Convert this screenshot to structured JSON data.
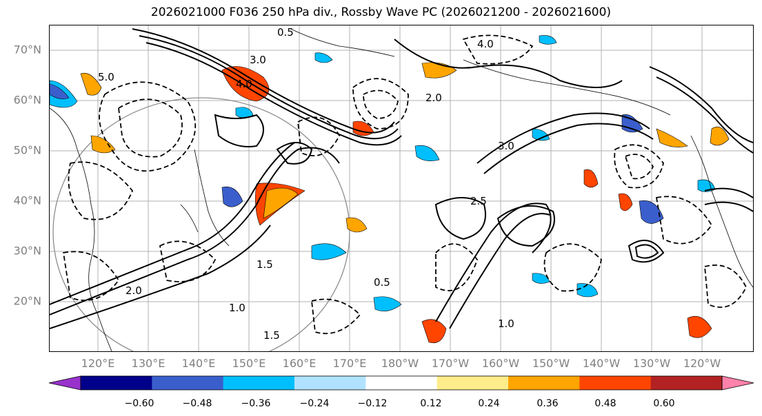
{
  "title": "2026021000 F036 250 hPa div., Rossby Wave PC (2026021200 - 2026021600)",
  "map": {
    "lat_labels": [
      "70°N",
      "60°N",
      "50°N",
      "40°N",
      "30°N",
      "20°N"
    ],
    "lon_labels": [
      "120°E",
      "130°E",
      "140°E",
      "150°E",
      "160°E",
      "170°E",
      "180°W",
      "170°W",
      "160°W",
      "150°W",
      "140°W",
      "130°W",
      "120°W"
    ],
    "contour_labels": [
      "0.5",
      "4.0",
      "3.0",
      "2.0",
      "1.5",
      "1.0",
      "2.5",
      "0.5",
      "1.0",
      "2.0",
      "3.0",
      "4.0",
      "5.0",
      "1.5"
    ],
    "gridline_color": "#b0b0b0",
    "coast_color": "#000000"
  },
  "colorbar": {
    "colors": [
      "#9932cc",
      "#00008b",
      "#3a5fcd",
      "#00bfff",
      "#b0e2ff",
      "#ffffff",
      "#ffec8b",
      "#ffa500",
      "#ff4500",
      "#b22222",
      "#ff82ab"
    ],
    "tick_labels": [
      "−0.60",
      "−0.48",
      "−0.36",
      "−0.24",
      "−0.12",
      "0.12",
      "0.24",
      "0.36",
      "0.48",
      "0.60"
    ]
  }
}
